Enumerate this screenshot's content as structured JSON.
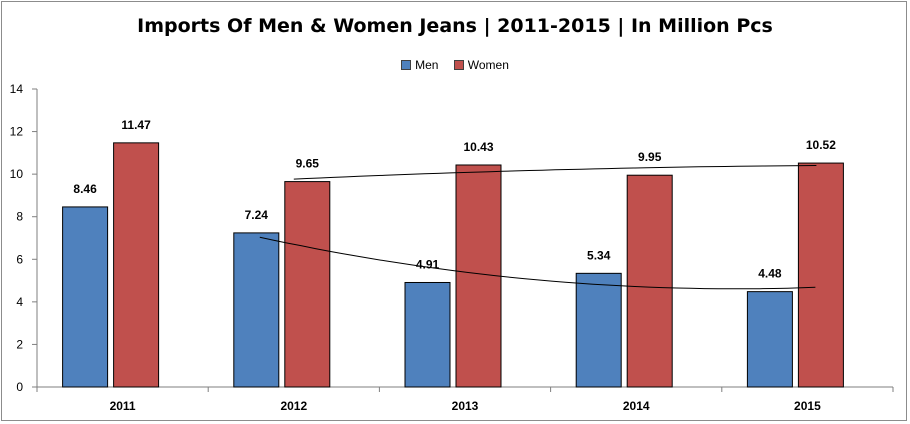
{
  "chart_data": {
    "type": "bar",
    "title": "Imports Of Men & Women Jeans | 2011-2015 | In Million Pcs",
    "categories": [
      "2011",
      "2012",
      "2013",
      "2014",
      "2015"
    ],
    "series": [
      {
        "name": "Men",
        "color": "#4f81bd",
        "values": [
          8.46,
          7.24,
          4.91,
          5.34,
          4.48
        ]
      },
      {
        "name": "Women",
        "color": "#c0504d",
        "values": [
          11.47,
          9.65,
          10.43,
          9.95,
          10.52
        ]
      }
    ],
    "ylim": [
      0,
      14
    ],
    "yticks": [
      0,
      2,
      4,
      6,
      8,
      10,
      12,
      14
    ],
    "legend": "top-center",
    "grid": false,
    "trendlines": "polynomial trendlines over 2012-2015 for both series"
  }
}
